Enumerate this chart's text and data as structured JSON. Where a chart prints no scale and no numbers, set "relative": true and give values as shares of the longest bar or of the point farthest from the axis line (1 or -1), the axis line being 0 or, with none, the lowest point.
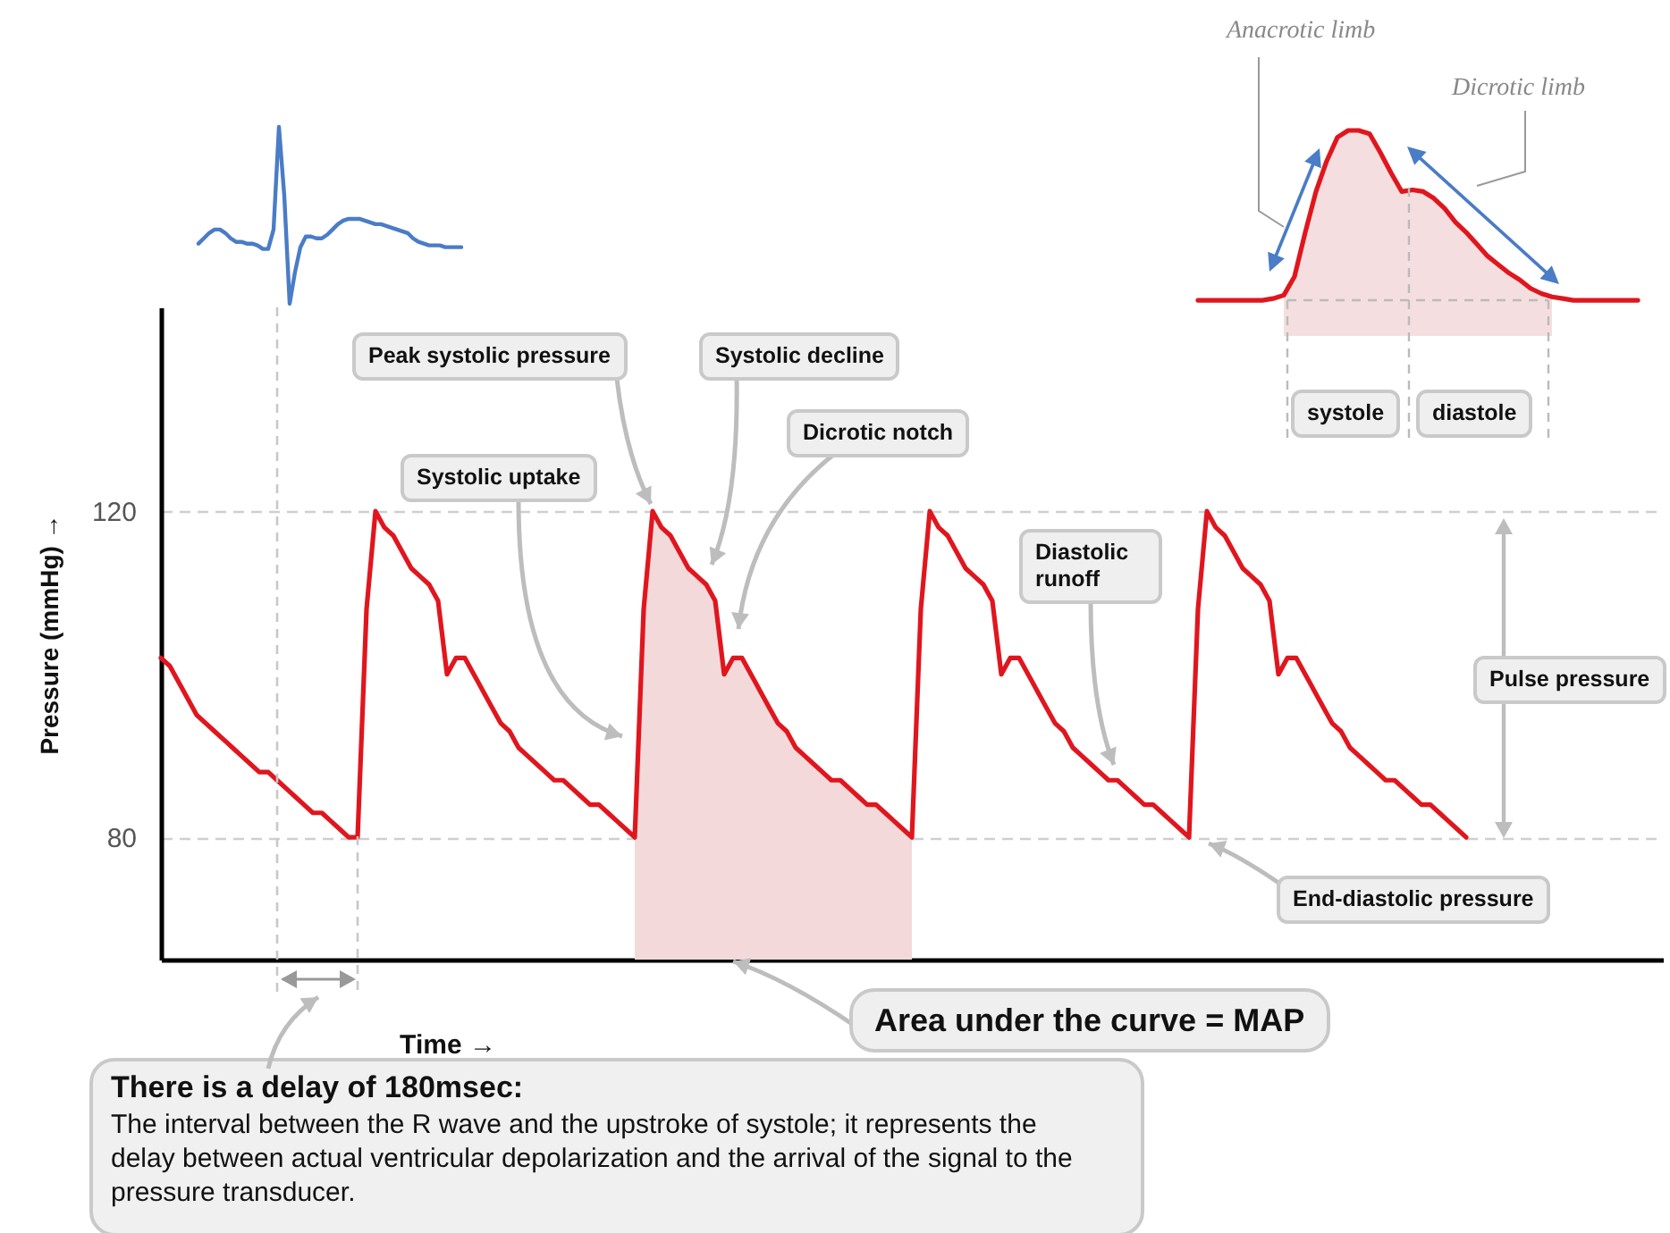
{
  "chart_data": [
    {
      "type": "line",
      "relative": true,
      "categories": [
        null,
        null,
        null,
        null,
        null,
        null,
        null,
        null,
        null,
        null,
        null,
        null,
        null,
        null,
        null,
        null,
        null,
        null,
        null,
        null,
        null,
        null,
        null,
        null,
        null,
        null,
        null,
        null,
        null,
        null,
        null,
        null,
        null,
        null,
        null,
        null,
        null,
        null,
        null,
        null,
        null,
        null,
        null,
        null,
        null,
        null,
        null,
        null,
        null,
        null
      ],
      "series": [
        {
          "color": "#4a7cc7",
          "values": [
            0.34,
            0.37,
            0.4,
            0.42,
            0.42,
            0.4,
            0.37,
            0.35,
            0.35,
            0.34,
            0.34,
            0.33,
            0.31,
            0.31,
            0.42,
            1,
            0.61,
            0,
            0.18,
            0.32,
            0.38,
            0.38,
            0.37,
            0.37,
            0.39,
            0.42,
            0.45,
            0.47,
            0.48,
            0.48,
            0.48,
            0.47,
            0.46,
            0.45,
            0.45,
            0.44,
            0.43,
            0.42,
            0.41,
            0.4,
            0.37,
            0.35,
            0.34,
            0.33,
            0.33,
            0.33,
            0.32,
            0.32,
            0.32,
            0.32
          ]
        }
      ]
    },
    {
      "type": "line",
      "xlabel": "Time →",
      "ylabel": "Pressure (mmHg) →",
      "categories": [
        null,
        null,
        null,
        null,
        null,
        null,
        null,
        null,
        null,
        null,
        null,
        null,
        null,
        null,
        null,
        null,
        null,
        null,
        null,
        null,
        null,
        null,
        null,
        null,
        null,
        null,
        null,
        null,
        null,
        null,
        null,
        null,
        null,
        null,
        null,
        null,
        null,
        null,
        null,
        null,
        null,
        null,
        null,
        null,
        null,
        null,
        null,
        null,
        null,
        null,
        null,
        null,
        null,
        null,
        null,
        null,
        null,
        null,
        null,
        null,
        null,
        null,
        null,
        null,
        null,
        null,
        null,
        null,
        null,
        null,
        null,
        null,
        null,
        null,
        null,
        null,
        null,
        null,
        null,
        null,
        null,
        null,
        null,
        null,
        null,
        null,
        null,
        null,
        null,
        null,
        null,
        null,
        null,
        null,
        null,
        null,
        null,
        null,
        null,
        null,
        null,
        null,
        null,
        null,
        null,
        null,
        null,
        null,
        null,
        null,
        null,
        null,
        null,
        null,
        null,
        null,
        null,
        null,
        null,
        null,
        null,
        null,
        null,
        null,
        null,
        null,
        null,
        null,
        null,
        null,
        null,
        null,
        null,
        null,
        null,
        null,
        null,
        null,
        null,
        null,
        null,
        null,
        null,
        null,
        null,
        null,
        null
      ],
      "series": [
        {
          "type": "area",
          "color": "#f3d9da",
          "values": [
            null,
            null,
            null,
            null,
            null,
            null,
            null,
            null,
            null,
            null,
            null,
            null,
            null,
            null,
            null,
            null,
            null,
            null,
            null,
            null,
            null,
            null,
            null,
            null,
            null,
            null,
            null,
            null,
            null,
            null,
            null,
            null,
            null,
            null,
            null,
            null,
            null,
            null,
            null,
            null,
            null,
            null,
            null,
            null,
            null,
            null,
            null,
            null,
            null,
            null,
            null,
            null,
            null,
            80,
            108,
            120,
            118,
            117,
            115,
            113,
            112,
            111,
            109,
            100,
            102,
            102,
            100,
            98,
            96,
            94,
            93,
            91,
            90,
            89,
            88,
            87,
            87,
            86,
            85,
            84,
            84,
            83,
            82,
            81,
            80,
            null,
            null,
            null,
            null,
            null,
            null,
            null,
            null,
            null,
            null,
            null,
            null,
            null,
            null,
            null,
            null,
            null,
            null,
            null,
            null,
            null,
            null,
            null,
            null,
            null,
            null,
            null,
            null,
            null,
            null,
            null,
            null,
            null,
            null,
            null,
            null,
            null,
            null,
            null,
            null,
            null,
            null,
            null,
            null,
            null,
            null,
            null,
            null,
            null,
            null,
            null,
            null,
            null,
            null,
            null,
            null,
            null,
            null,
            null,
            null,
            null,
            null
          ]
        },
        {
          "type": "line",
          "color": "#e0161e",
          "values": [
            102,
            101,
            99,
            97,
            95,
            94,
            93,
            92,
            91,
            90,
            89,
            88,
            88,
            87,
            86,
            85,
            84,
            83,
            83,
            82,
            81,
            80,
            80,
            108,
            120,
            118,
            117,
            115,
            113,
            112,
            111,
            109,
            100,
            102,
            102,
            100,
            98,
            96,
            94,
            93,
            91,
            90,
            89,
            88,
            87,
            87,
            86,
            85,
            84,
            84,
            83,
            82,
            81,
            80,
            108,
            120,
            118,
            117,
            115,
            113,
            112,
            111,
            109,
            100,
            102,
            102,
            100,
            98,
            96,
            94,
            93,
            91,
            90,
            89,
            88,
            87,
            87,
            86,
            85,
            84,
            84,
            83,
            82,
            81,
            80,
            108,
            120,
            118,
            117,
            115,
            113,
            112,
            111,
            109,
            100,
            102,
            102,
            100,
            98,
            96,
            94,
            93,
            91,
            90,
            89,
            88,
            87,
            87,
            86,
            85,
            84,
            84,
            83,
            82,
            81,
            80,
            108,
            120,
            118,
            117,
            115,
            113,
            112,
            111,
            109,
            100,
            102,
            102,
            100,
            98,
            96,
            94,
            93,
            91,
            90,
            89,
            88,
            87,
            87,
            86,
            85,
            84,
            84,
            83,
            82,
            81,
            80
          ]
        }
      ],
      "ylim": [
        65,
        145
      ],
      "yticks": [
        80,
        120
      ],
      "grid": "y",
      "annotations": [
        "Peak systolic pressure",
        "Systolic decline",
        "Dicrotic notch",
        "Systolic uptake",
        "Diastolic runoff",
        "Pulse pressure",
        "End-diastolic pressure",
        "Area under the curve = MAP",
        "There is a delay of 180msec:",
        "The interval between the R wave and the upstroke of systole; it represents the delay between actual ventricular depolarization and the arrival of the signal to the pressure transducer."
      ]
    },
    {
      "type": "line",
      "relative": true,
      "categories": [
        null,
        null,
        null,
        null,
        null,
        null,
        null,
        null,
        null,
        null,
        null,
        null,
        null,
        null,
        null,
        null,
        null,
        null,
        null,
        null,
        null,
        null,
        null,
        null,
        null,
        null,
        null,
        null,
        null,
        null,
        null,
        null,
        null,
        null,
        null,
        null,
        null,
        null,
        null,
        null,
        null,
        null
      ],
      "series": [
        {
          "type": "line",
          "color": "#e0161e",
          "values": [
            0,
            0,
            0,
            0,
            0,
            0,
            0,
            0.01,
            0.03,
            0.14,
            0.4,
            0.64,
            0.82,
            0.96,
            1,
            1,
            0.98,
            0.87,
            0.75,
            0.64,
            0.65,
            0.64,
            0.6,
            0.54,
            0.46,
            0.4,
            0.33,
            0.26,
            0.21,
            0.16,
            0.12,
            0.07,
            0.04,
            0.02,
            0.01,
            0,
            0,
            0,
            0,
            0,
            0,
            0
          ]
        }
      ],
      "annotations": [
        "Anacrotic limb",
        "Dicrotic limb",
        "systole",
        "diastole"
      ]
    }
  ]
}
